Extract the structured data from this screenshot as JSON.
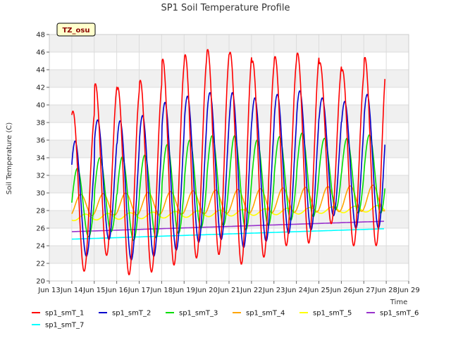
{
  "chart_data": {
    "type": "line",
    "title": "SP1 Soil Temperature Profile",
    "ylabel": "Soil Temperature (C)",
    "xlabel": "Time",
    "ylim": [
      20,
      48
    ],
    "yticks": [
      20,
      22,
      24,
      26,
      28,
      30,
      32,
      34,
      36,
      38,
      40,
      42,
      44,
      46,
      48
    ],
    "xlim": [
      13.0,
      29.0
    ],
    "xticks": [
      {
        "value": 13,
        "label": "Jun 13"
      },
      {
        "value": 14,
        "label": "Jun 14"
      },
      {
        "value": 15,
        "label": "Jun 15"
      },
      {
        "value": 16,
        "label": "Jun 16"
      },
      {
        "value": 17,
        "label": "Jun 17"
      },
      {
        "value": 18,
        "label": "Jun 18"
      },
      {
        "value": 19,
        "label": "Jun 19"
      },
      {
        "value": 20,
        "label": "Jun 20"
      },
      {
        "value": 21,
        "label": "Jun 21"
      },
      {
        "value": 22,
        "label": "Jun 22"
      },
      {
        "value": 23,
        "label": "Jun 23"
      },
      {
        "value": 24,
        "label": "Jun 24"
      },
      {
        "value": 25,
        "label": "Jun 25"
      },
      {
        "value": 26,
        "label": "Jun 26"
      },
      {
        "value": 27,
        "label": "Jun 27"
      },
      {
        "value": 28,
        "label": "Jun 28"
      },
      {
        "value": 29,
        "label": "Jun 29"
      }
    ],
    "grid": true,
    "badge": "TZ_osu",
    "legend_position": "bottom",
    "series": [
      {
        "name": "sp1_smT_1",
        "color": "#ff0000",
        "x": [
          13.55,
          13.65,
          13.75,
          13.85,
          13.95,
          14.05,
          14.15,
          14.25,
          14.35,
          14.45,
          14.55,
          14.65,
          14.75,
          14.85,
          14.95,
          15.05,
          15.15,
          15.25,
          15.35,
          15.45,
          15.55,
          15.65,
          15.75,
          15.85,
          15.95,
          16.05,
          16.15,
          16.25,
          16.35,
          16.45,
          16.55,
          16.65,
          16.75,
          16.85,
          16.95,
          17.05,
          17.15,
          17.25,
          17.35,
          17.45,
          17.55,
          17.65,
          17.75,
          17.85,
          17.95,
          18.05,
          18.15,
          18.25,
          18.35,
          18.45,
          18.55,
          18.65,
          18.75,
          18.85,
          18.95,
          19.05,
          19.15,
          19.25,
          19.35,
          19.45,
          19.55,
          19.65,
          19.75,
          19.85,
          19.95,
          20.05,
          20.15,
          20.25,
          20.35,
          20.45,
          20.55,
          20.65,
          20.75,
          20.85,
          20.95,
          21.05,
          21.15,
          21.25,
          21.35,
          21.45,
          21.55,
          21.65,
          21.75,
          21.85,
          21.95,
          22.05,
          22.15,
          22.25,
          22.35,
          22.45,
          22.55,
          22.65,
          22.75,
          22.85,
          22.95,
          23.05,
          23.15,
          23.25,
          23.35,
          23.45,
          23.55,
          23.65,
          23.75,
          23.85,
          23.95,
          24.05,
          24.15,
          24.25,
          24.35,
          24.45,
          24.55,
          24.65,
          24.75,
          24.85,
          24.95,
          25.05,
          25.15,
          25.25,
          25.35,
          25.45,
          25.55,
          25.65,
          25.75,
          25.85,
          25.95,
          26.05,
          26.15,
          26.25,
          26.35,
          26.45,
          26.55,
          26.65,
          26.75,
          26.85,
          26.95,
          27.05,
          27.15,
          27.25,
          27.35,
          27.45,
          27.55,
          27.65,
          27.75,
          27.85,
          27.95,
          28.05,
          28.15,
          28.25,
          28.35,
          28.45,
          28.55,
          28.65,
          28.75,
          28.85,
          28.95
        ],
        "values": [
          null,
          null,
          null,
          null,
          null,
          null,
          null,
          null,
          null,
          null,
          null,
          null,
          null,
          null,
          null,
          null,
          null,
          null,
          null,
          null,
          null,
          null,
          null,
          null,
          null,
          null,
          null,
          null,
          null,
          null,
          null,
          null,
          null,
          null,
          null,
          null,
          null,
          null,
          null,
          null,
          null,
          null,
          null,
          null,
          null,
          null,
          null,
          null,
          null,
          null,
          null,
          null,
          null,
          null,
          null,
          null,
          null,
          null,
          null,
          null,
          null,
          null,
          null,
          null,
          null,
          null,
          null,
          null,
          null,
          null,
          null,
          null,
          null,
          null,
          null,
          null,
          null,
          null,
          null,
          null,
          null,
          null,
          null,
          null,
          null,
          null,
          null,
          null,
          null,
          null,
          null,
          null,
          null,
          null,
          null,
          null,
          null,
          null,
          null,
          null,
          null,
          null,
          null,
          null,
          null,
          null,
          null,
          null,
          null,
          null,
          null,
          null,
          null,
          null,
          null,
          null,
          null,
          null,
          null,
          null,
          null,
          null,
          null,
          null,
          null,
          null,
          null,
          null,
          null,
          null,
          null,
          null,
          null,
          null,
          null,
          null,
          null,
          null,
          null,
          null,
          null,
          null,
          null,
          null,
          null,
          null,
          null,
          null,
          null,
          null,
          null,
          null,
          null,
          null,
          null
        ]
      },
      {
        "name": "sp1_smT_2",
        "color": "#0000cc",
        "values": []
      },
      {
        "name": "sp1_smT_3",
        "color": "#00dd00",
        "values": []
      },
      {
        "name": "sp1_smT_4",
        "color": "#ffa500",
        "values": []
      },
      {
        "name": "sp1_smT_5",
        "color": "#ffff00",
        "values": []
      },
      {
        "name": "sp1_smT_6",
        "color": "#9932cc",
        "values": []
      },
      {
        "name": "sp1_smT_7",
        "color": "#00ffff",
        "values": []
      }
    ]
  }
}
